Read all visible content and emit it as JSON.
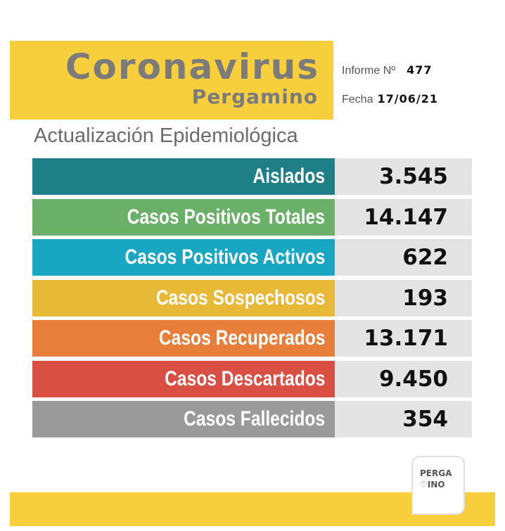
{
  "header": {
    "title": "Coronavirus",
    "subtitle": "Pergamino",
    "informe_label": "Informe Nº",
    "informe_value": "477",
    "fecha_label": "Fecha",
    "fecha_value": "17/06/21",
    "section_title": "Actualización Epidemiológica"
  },
  "rows": [
    {
      "label": "Aislados",
      "value": "3.545",
      "color": "#1e7f87"
    },
    {
      "label": "Casos Positivos Totales",
      "value": "14.147",
      "color": "#6bb068"
    },
    {
      "label": "Casos Positivos Activos",
      "value": "622",
      "color": "#19a6c2"
    },
    {
      "label": "Casos Sospechosos",
      "value": "193",
      "color": "#e8b936"
    },
    {
      "label": "Casos Recuperados",
      "value": "13.171",
      "color": "#e77f3a"
    },
    {
      "label": "Casos Descartados",
      "value": "9.450",
      "color": "#d94f43"
    },
    {
      "label": "Casos Fallecidos",
      "value": "354",
      "color": "#9a9a9a"
    }
  ],
  "logo": {
    "text": "PERGA\n♡INO"
  },
  "colors": {
    "accent": "#f7cf3d",
    "title_text": "#7b7b7b",
    "value_bg": "#e4e4e4"
  }
}
